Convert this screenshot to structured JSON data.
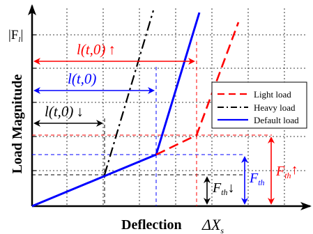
{
  "axes": {
    "y_label": "Load Magnitude",
    "y_symbol": "|F",
    "y_symbol_sub": "l",
    "y_symbol_close": "|",
    "x_label": "Deflection",
    "x_symbol": "ΔX",
    "x_symbol_sub": "s"
  },
  "legend": {
    "items": [
      {
        "label": "Light load",
        "color": "#ff0000",
        "style": "dashed"
      },
      {
        "label": "Heavy load",
        "color": "#000000",
        "style": "dashdot"
      },
      {
        "label": "Default load",
        "color": "#0000ff",
        "style": "solid"
      }
    ]
  },
  "annotations": {
    "l_light": {
      "text": "l(t,0)",
      "arrow": "↑",
      "color": "#ff0000"
    },
    "l_default": {
      "text": "l(t,0)",
      "arrow": "",
      "color": "#0000ff"
    },
    "l_heavy": {
      "text": "l(t,0)",
      "arrow": "↓",
      "color": "#000000"
    },
    "f_heavy": {
      "text": "F",
      "sub": "th",
      "arrow": "↓",
      "color": "#000000"
    },
    "f_default": {
      "text": "F",
      "sub": "th",
      "arrow": "",
      "color": "#0000ff"
    },
    "f_light": {
      "text": "F",
      "sub": "th",
      "arrow": "↑",
      "color": "#ff0000"
    }
  },
  "colors": {
    "axis": "#000000",
    "grid": "#000000",
    "light": "#ff0000",
    "heavy": "#000000",
    "default": "#0000ff"
  }
}
